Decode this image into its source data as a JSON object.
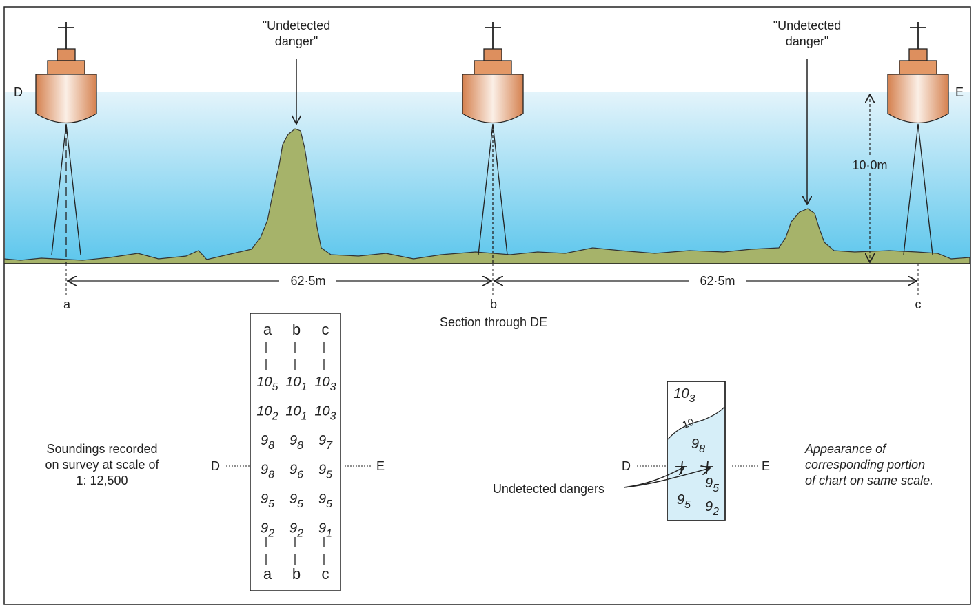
{
  "section": {
    "label_d": "D",
    "label_e": "E",
    "danger_label_line1": "\"Undetected",
    "danger_label_line2": "danger\"",
    "depth_label": "10·0m",
    "distance_ab": "62·5m",
    "distance_bc": "62·5m",
    "point_a": "a",
    "point_b": "b",
    "point_c": "c",
    "caption": "Section through DE"
  },
  "survey": {
    "caption_line1": "Soundings recorded",
    "caption_line2": "on survey at scale of",
    "caption_line3": "1: 12,500",
    "label_d": "D",
    "label_e": "E",
    "columns": [
      "a",
      "b",
      "c"
    ],
    "rows": [
      [
        [
          "10",
          "5"
        ],
        [
          "10",
          "1"
        ],
        [
          "10",
          "3"
        ]
      ],
      [
        [
          "10",
          "2"
        ],
        [
          "10",
          "1"
        ],
        [
          "10",
          "3"
        ]
      ],
      [
        [
          "9",
          "8"
        ],
        [
          "9",
          "8"
        ],
        [
          "9",
          "7"
        ]
      ],
      [
        [
          "9",
          "8"
        ],
        [
          "9",
          "6"
        ],
        [
          "9",
          "5"
        ]
      ],
      [
        [
          "9",
          "5"
        ],
        [
          "9",
          "5"
        ],
        [
          "9",
          "5"
        ]
      ],
      [
        [
          "9",
          "2"
        ],
        [
          "9",
          "2"
        ],
        [
          "9",
          "1"
        ]
      ]
    ]
  },
  "chart": {
    "label_d": "D",
    "label_e": "E",
    "contour_label": "10",
    "soundings": [
      [
        "10",
        "3"
      ],
      [
        "9",
        "8"
      ],
      [
        "9",
        "5"
      ],
      [
        "9",
        "5"
      ],
      [
        "9",
        "2"
      ]
    ],
    "dangers_label": "Undetected dangers",
    "caption_line1": "Appearance of",
    "caption_line2": "corresponding portion",
    "caption_line3": "of chart on same scale."
  },
  "colors": {
    "water_top": "#e4f4fb",
    "water_bottom": "#5cc6ec",
    "seabed": "#a6b36a",
    "ship": "#d9895a",
    "chart_shallow": "#d6eef8"
  }
}
